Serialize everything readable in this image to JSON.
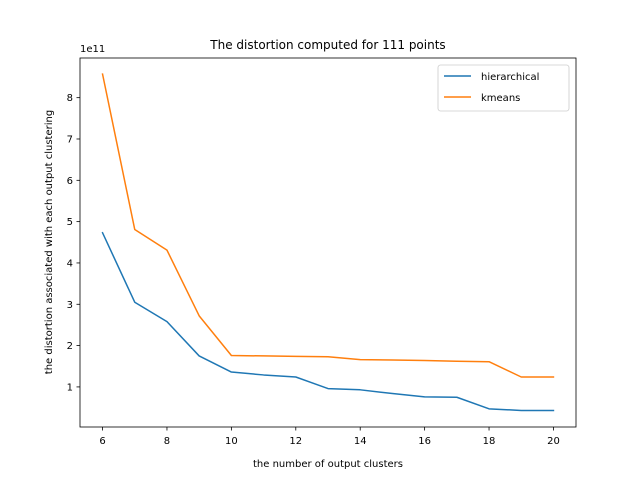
{
  "chart_data": {
    "type": "line",
    "title": "The distortion computed for 111 points",
    "xlabel": "the number of output clusters",
    "ylabel": "the distortion associated with each output clustering",
    "y_offset_label": "1e11",
    "x": [
      6,
      7,
      8,
      9,
      10,
      11,
      12,
      13,
      14,
      15,
      16,
      17,
      18,
      19,
      20
    ],
    "series": [
      {
        "name": "hierarchical",
        "color": "#1f77b4",
        "values": [
          4.73,
          3.05,
          2.58,
          1.75,
          1.36,
          1.29,
          1.24,
          0.96,
          0.93,
          0.84,
          0.76,
          0.75,
          0.47,
          0.43,
          0.43
        ]
      },
      {
        "name": "kmeans",
        "color": "#ff7f0e",
        "values": [
          8.57,
          4.81,
          4.31,
          2.72,
          1.76,
          1.75,
          1.74,
          1.73,
          1.66,
          1.65,
          1.64,
          1.62,
          1.61,
          1.24,
          1.24
        ]
      }
    ],
    "xticks": [
      6,
      8,
      10,
      12,
      14,
      16,
      18,
      20
    ],
    "yticks": [
      1,
      2,
      3,
      4,
      5,
      6,
      7,
      8
    ],
    "xlim": [
      5.3,
      20.7
    ],
    "ylim": [
      0.03,
      8.96
    ],
    "legend_position": "upper right",
    "grid": false
  }
}
